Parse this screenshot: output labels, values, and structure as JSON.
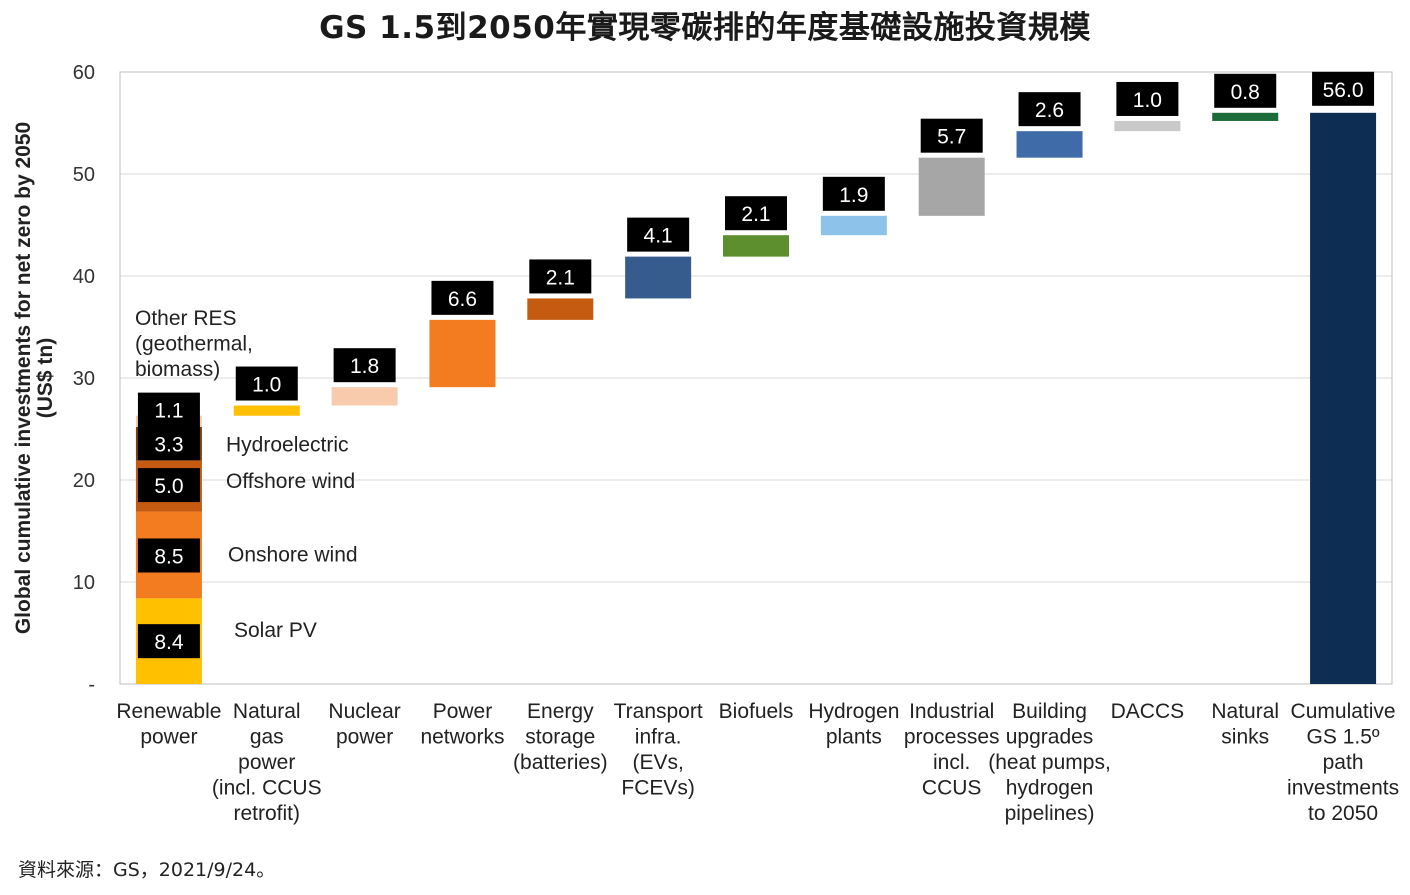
{
  "title": "GS 1.5到2050年實現零碳排的年度基礎設施投資規模",
  "source_note": "資料來源：GS，2021/9/24。",
  "chart_data": {
    "type": "bar",
    "subtype": "waterfall",
    "ylabel_lines": [
      "Global cumulative investments for net zero by 2050",
      "(US$ tn)"
    ],
    "ylim": [
      0,
      60
    ],
    "yticks": [
      "-",
      "10",
      "20",
      "30",
      "40",
      "50",
      "60"
    ],
    "grid": true,
    "categories": [
      {
        "lines": [
          "Renewable",
          "power"
        ]
      },
      {
        "lines": [
          "Natural",
          "gas",
          "power",
          "(incl. CCUS",
          "retrofit)"
        ]
      },
      {
        "lines": [
          "Nuclear",
          "power"
        ]
      },
      {
        "lines": [
          "Power",
          "networks"
        ]
      },
      {
        "lines": [
          "Energy",
          "storage",
          "(batteries)"
        ]
      },
      {
        "lines": [
          "Transport",
          "infra.",
          "(EVs,",
          "FCEVs)"
        ]
      },
      {
        "lines": [
          "Biofuels"
        ]
      },
      {
        "lines": [
          "Hydrogen",
          "plants"
        ]
      },
      {
        "lines": [
          "Industrial",
          "processes",
          "incl.",
          "CCUS"
        ]
      },
      {
        "lines": [
          "Building",
          "upgrades",
          "(heat pumps,",
          "hydrogen",
          "pipelines)"
        ]
      },
      {
        "lines": [
          "DACCS"
        ]
      },
      {
        "lines": [
          "Natural",
          "sinks"
        ]
      },
      {
        "lines": [
          "Cumulative",
          "GS 1.5º",
          "path",
          "investments",
          "to 2050"
        ]
      }
    ],
    "renewable_components": [
      {
        "name": "Solar PV",
        "value": 8.4,
        "label": "8.4",
        "color": "#FFC000"
      },
      {
        "name": "Onshore wind",
        "value": 8.5,
        "label": "8.5",
        "color": "#F37B20"
      },
      {
        "name": "Offshore wind",
        "value": 5.0,
        "label": "5.0",
        "color": "#C55A11"
      },
      {
        "name": "Hydroelectric",
        "value": 3.3,
        "label": "3.3",
        "color": "#7B3F14"
      },
      {
        "name": "Other RES (geothermal, biomass)",
        "value": 1.1,
        "label": "1.1",
        "color": "#F8CBAD"
      }
    ],
    "component_annotations": [
      {
        "lines": [
          "Solar PV"
        ]
      },
      {
        "lines": [
          "Onshore wind"
        ]
      },
      {
        "lines": [
          "Offshore wind"
        ]
      },
      {
        "lines": [
          "Hydroelectric"
        ]
      },
      {
        "lines": [
          "Other RES",
          "(geothermal,",
          "biomass)"
        ]
      }
    ],
    "steps": [
      {
        "value": 1.0,
        "label": "1.0",
        "color": "#FFC000"
      },
      {
        "value": 1.8,
        "label": "1.8",
        "color": "#F8CBAD"
      },
      {
        "value": 6.6,
        "label": "6.6",
        "color": "#F37B20"
      },
      {
        "value": 2.1,
        "label": "2.1",
        "color": "#C55A11"
      },
      {
        "value": 4.1,
        "label": "4.1",
        "color": "#355C8C"
      },
      {
        "value": 2.1,
        "label": "2.1",
        "color": "#5E8F2E"
      },
      {
        "value": 1.9,
        "label": "1.9",
        "color": "#8DC3EA"
      },
      {
        "value": 5.7,
        "label": "5.7",
        "color": "#A6A6A6"
      },
      {
        "value": 2.6,
        "label": "2.6",
        "color": "#3F6CA8"
      },
      {
        "value": 1.0,
        "label": "1.0",
        "color": "#C9C9C9"
      },
      {
        "value": 0.8,
        "label": "0.8",
        "color": "#1E6B3A"
      }
    ],
    "total": {
      "value": 56.0,
      "label": "56.0",
      "color": "#0D2D52"
    }
  }
}
